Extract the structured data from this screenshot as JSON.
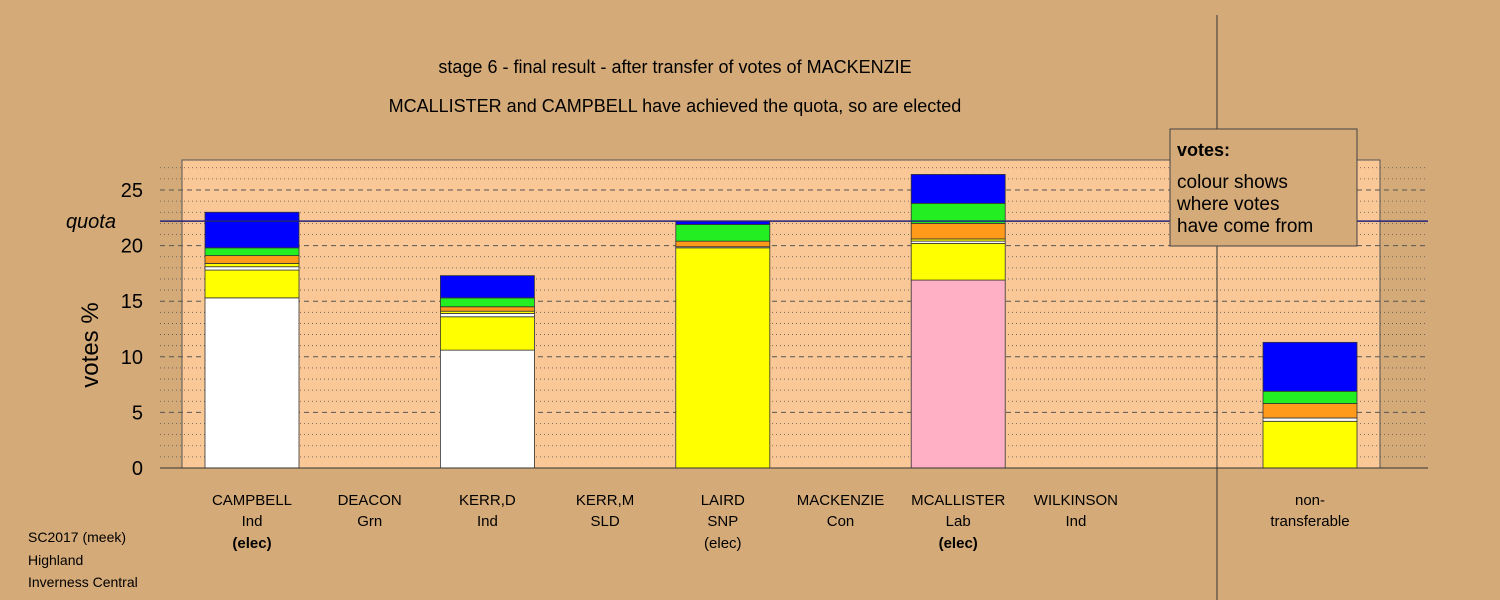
{
  "colors": {
    "background": "#d4aa78",
    "plot_bg": "#fac896",
    "quota_line": "#23237a",
    "grid": "#555555"
  },
  "chart_data": {
    "type": "bar",
    "stacked": true,
    "title": "stage 6 - final result - after transfer of votes of MACKENZIE",
    "subtitle": "MCALLISTER and CAMPBELL have achieved the quota, so are elected",
    "ylabel": "votes %",
    "ylim": [
      0,
      27.6
    ],
    "yticks": [
      0,
      5,
      10,
      15,
      20,
      25
    ],
    "quota": 22.2,
    "quota_label": "quota",
    "legend": {
      "position": "top-right",
      "title": "votes:",
      "lines": [
        "colour shows",
        "where votes",
        "have come from"
      ]
    },
    "categories": [
      {
        "name": "CAMPBELL",
        "party": "Ind",
        "status": "(elec)",
        "status_bold": true
      },
      {
        "name": "DEACON",
        "party": "Grn",
        "status": "",
        "status_bold": false
      },
      {
        "name": "KERR,D",
        "party": "Ind",
        "status": "",
        "status_bold": false
      },
      {
        "name": "KERR,M",
        "party": "SLD",
        "status": "",
        "status_bold": false
      },
      {
        "name": "LAIRD",
        "party": "SNP",
        "status": "(elec)",
        "status_bold": false
      },
      {
        "name": "MACKENZIE",
        "party": "Con",
        "status": "",
        "status_bold": false
      },
      {
        "name": "MCALLISTER",
        "party": "Lab",
        "status": "(elec)",
        "status_bold": true
      },
      {
        "name": "WILKINSON",
        "party": "Ind",
        "status": "",
        "status_bold": false
      }
    ],
    "nontransferable_label": [
      "non-",
      "transferable"
    ],
    "segments": [
      [
        {
          "color": "#ffffff",
          "value": 15.3
        },
        {
          "color": "#ffff00",
          "value": 2.5
        },
        {
          "color": "#ffffff",
          "value": 0.3
        },
        {
          "color": "#ffff00",
          "value": 0.3
        },
        {
          "color": "#ff9a1a",
          "value": 0.7
        },
        {
          "color": "#22ee22",
          "value": 0.7
        },
        {
          "color": "#0000ff",
          "value": 3.2
        }
      ],
      [],
      [
        {
          "color": "#ffffff",
          "value": 10.6
        },
        {
          "color": "#ffff00",
          "value": 3.0
        },
        {
          "color": "#ffffff",
          "value": 0.3
        },
        {
          "color": "#ffff00",
          "value": 0.2
        },
        {
          "color": "#ff9a1a",
          "value": 0.4
        },
        {
          "color": "#22ee22",
          "value": 0.8
        },
        {
          "color": "#0000ff",
          "value": 2.0
        }
      ],
      [],
      [
        {
          "color": "#ffff00",
          "value": 19.8
        },
        {
          "color": "#ffffff",
          "value": 0.1
        },
        {
          "color": "#ff9a1a",
          "value": 0.5
        },
        {
          "color": "#22ee22",
          "value": 1.5
        },
        {
          "color": "#0000ff",
          "value": 0.3
        }
      ],
      [],
      [
        {
          "color": "#ffb0c4",
          "value": 16.9
        },
        {
          "color": "#ffff00",
          "value": 3.3
        },
        {
          "color": "#ffffff",
          "value": 0.2
        },
        {
          "color": "#ffff00",
          "value": 0.2
        },
        {
          "color": "#ff9a1a",
          "value": 1.4
        },
        {
          "color": "#22ee22",
          "value": 1.8
        },
        {
          "color": "#0000ff",
          "value": 2.6
        }
      ],
      []
    ],
    "nontransferable_segments": [
      {
        "color": "#ffff00",
        "value": 4.2
      },
      {
        "color": "#ffffff",
        "value": 0.3
      },
      {
        "color": "#ff9a1a",
        "value": 1.3
      },
      {
        "color": "#22ee22",
        "value": 1.1
      },
      {
        "color": "#0000ff",
        "value": 4.4
      }
    ]
  },
  "footer": {
    "lines": [
      "SC2017 (meek)",
      "Highland",
      "Inverness Central"
    ]
  }
}
